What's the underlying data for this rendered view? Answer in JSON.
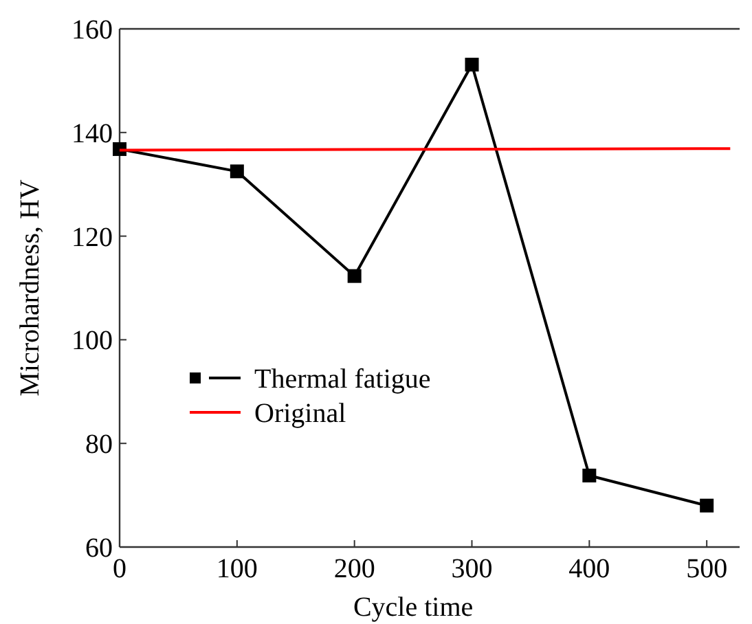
{
  "chart_data": {
    "type": "line",
    "xlabel": "Cycle time",
    "ylabel": "Microhardness, HV",
    "xlim": [
      0,
      528
    ],
    "xticks": [
      0,
      100,
      200,
      300,
      400,
      500
    ],
    "ylim": [
      60,
      160
    ],
    "yticks": [
      60,
      80,
      100,
      120,
      140,
      160
    ],
    "legend": "left",
    "grid": false,
    "series": [
      {
        "name": "Thermal fatigue",
        "color": "#000000",
        "marker": "square",
        "x": [
          0,
          100,
          200,
          300,
          400,
          500
        ],
        "values": [
          136.8,
          132.5,
          112.3,
          153.1,
          73.8,
          68.0
        ]
      },
      {
        "name": "Original",
        "color": "#ff0000",
        "marker": "none",
        "x": [
          0,
          520
        ],
        "values": [
          136.6,
          136.9
        ]
      }
    ]
  }
}
